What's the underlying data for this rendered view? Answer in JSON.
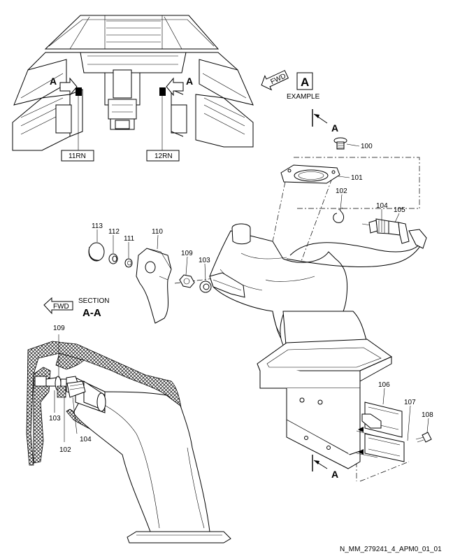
{
  "view_a": {
    "fwd_label": "FWD",
    "letter": "A",
    "example_label": "EXAMPLE"
  },
  "cockpit": {
    "arrow_left_label": "A",
    "arrow_right_label": "A",
    "panel_left": "11RN",
    "panel_right": "12RN"
  },
  "section": {
    "fwd_label": "FWD",
    "section_word": "SECTION",
    "section_name": "A-A"
  },
  "section_markers": {
    "top_label": "A",
    "bottom_label": "A"
  },
  "callouts": {
    "c100": "100",
    "c101": "101",
    "c102": "102",
    "c103": "103",
    "c104": "104",
    "c105": "105",
    "c106": "106",
    "c107": "107",
    "c108": "108",
    "c109": "109",
    "c110": "110",
    "c111": "111",
    "c112": "112",
    "c113": "113",
    "s109": "109",
    "s103": "103",
    "s102": "102",
    "s104": "104"
  },
  "footer": {
    "figure_id": "N_MM_279241_4_APM0_01_01"
  }
}
